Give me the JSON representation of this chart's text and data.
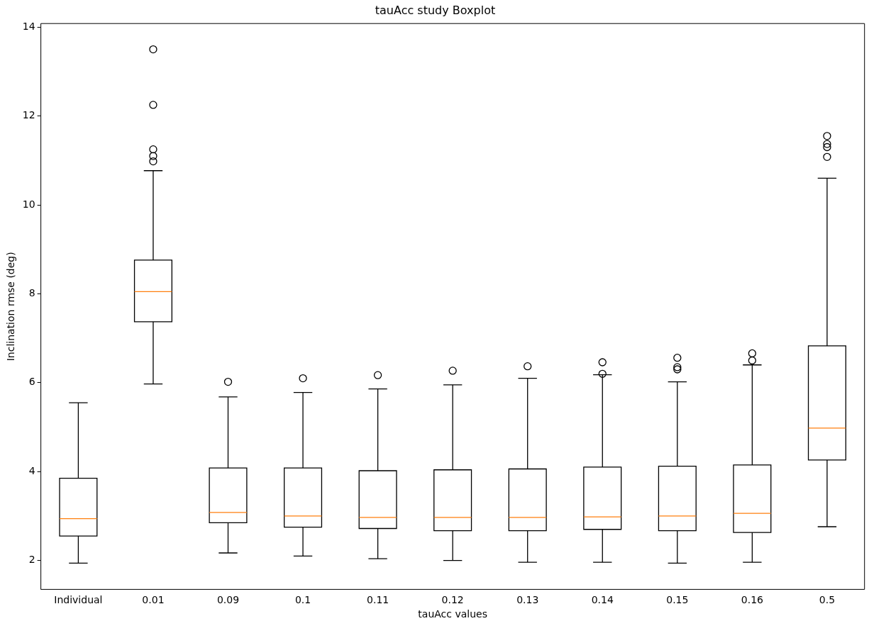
{
  "chart_data": {
    "type": "box",
    "title": "tauAcc study Boxplot",
    "xlabel": "tauAcc values",
    "ylabel": "Inclination rmse (deg)",
    "categories": [
      "Individual",
      "0.01",
      "0.09",
      "0.1",
      "0.11",
      "0.12",
      "0.13",
      "0.14",
      "0.15",
      "0.16",
      "0.5"
    ],
    "boxes": [
      {
        "low": 1.94,
        "q1": 2.55,
        "median": 2.94,
        "q3": 3.85,
        "high": 5.55
      },
      {
        "low": 5.97,
        "q1": 7.37,
        "median": 8.05,
        "q3": 8.76,
        "high": 10.77,
        "outliers": [
          10.98,
          11.1,
          11.25,
          12.25,
          13.5
        ]
      },
      {
        "low": 2.17,
        "q1": 2.85,
        "median": 3.08,
        "q3": 4.08,
        "high": 5.68,
        "outliers": [
          6.02
        ]
      },
      {
        "low": 2.1,
        "q1": 2.75,
        "median": 3.0,
        "q3": 4.08,
        "high": 5.78,
        "outliers": [
          6.1
        ]
      },
      {
        "low": 2.04,
        "q1": 2.72,
        "median": 2.97,
        "q3": 4.02,
        "high": 5.86,
        "outliers": [
          6.17
        ]
      },
      {
        "low": 2.0,
        "q1": 2.67,
        "median": 2.97,
        "q3": 4.04,
        "high": 5.95,
        "outliers": [
          6.27
        ]
      },
      {
        "low": 1.96,
        "q1": 2.67,
        "median": 2.97,
        "q3": 4.06,
        "high": 6.1,
        "outliers": [
          6.37
        ]
      },
      {
        "low": 1.96,
        "q1": 2.7,
        "median": 2.98,
        "q3": 4.1,
        "high": 6.18,
        "outliers": [
          6.2,
          6.46
        ]
      },
      {
        "low": 1.94,
        "q1": 2.67,
        "median": 3.0,
        "q3": 4.12,
        "high": 6.02,
        "outliers": [
          6.3,
          6.35,
          6.56
        ]
      },
      {
        "low": 1.96,
        "q1": 2.63,
        "median": 3.06,
        "q3": 4.15,
        "high": 6.4,
        "outliers": [
          6.5,
          6.66
        ]
      },
      {
        "low": 2.76,
        "q1": 4.26,
        "median": 4.98,
        "q3": 6.83,
        "high": 10.6,
        "outliers": [
          11.08,
          11.3,
          11.37,
          11.55
        ]
      }
    ],
    "ylim": [
      1.35,
      14.08
    ],
    "yticks": [
      2,
      4,
      6,
      8,
      10,
      12,
      14
    ]
  }
}
